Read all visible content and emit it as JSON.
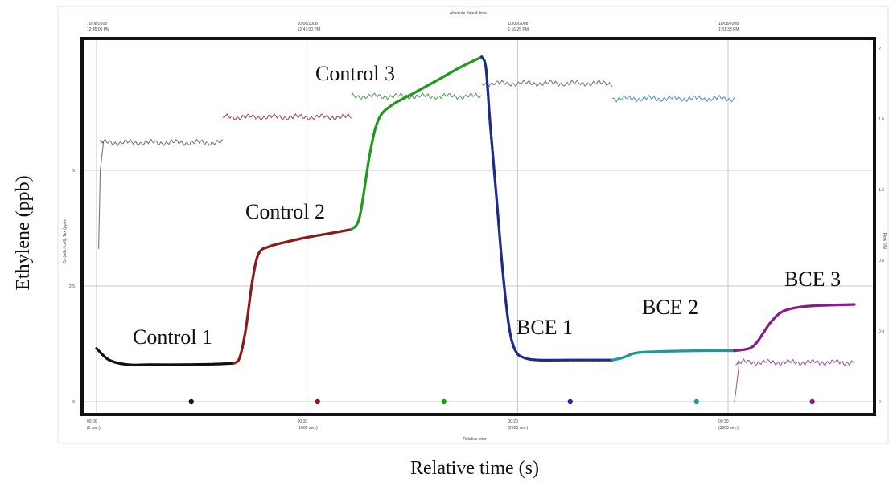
{
  "chart_data": {
    "type": "line",
    "xlabel": "Relative time (s)",
    "ylabel": "Ethylene (ppb)",
    "inner_top_label": "Absolute date & time",
    "inner_bottom_label": "Relative time",
    "inner_left_label": "Ca (ni/h / cell), Tex (ppbv)",
    "inner_right_label": "Flow (l/h)",
    "top_ticks": [
      {
        "line1": "10/08/2008",
        "line2": "12:45:00 PM"
      },
      {
        "line1": "10/08/2008",
        "line2": "12:47:00 PM"
      },
      {
        "line1": "10/08/2008",
        "line2": "1:16:25 PM"
      },
      {
        "line1": "10/08/2008",
        "line2": "1:31:38 PM"
      }
    ],
    "bottom_ticks": [
      {
        "line1": "00:00",
        "line2": "(0 sec.)"
      },
      {
        "line1": "00:10",
        "line2": "(1000 sec.)"
      },
      {
        "line1": "00:20",
        "line2": "(2000 sec.)"
      },
      {
        "line1": "00:30",
        "line2": "(3000 sec.)"
      }
    ],
    "left_ticks": [
      "5",
      "2.5",
      "0"
    ],
    "right_ticks": [
      "2",
      "1.6",
      "1.2",
      "0.8",
      "0.4",
      "0"
    ],
    "xlim": [
      0,
      3600
    ],
    "ylim": [
      0,
      7.5
    ],
    "series": [
      {
        "name": "Control 1",
        "color": "#111111",
        "points": [
          [
            0,
            1.15
          ],
          [
            60,
            0.9
          ],
          [
            150,
            0.8
          ],
          [
            250,
            0.8
          ],
          [
            400,
            0.8
          ],
          [
            550,
            0.81
          ],
          [
            650,
            0.83
          ]
        ],
        "marker": [
          450,
          0
        ]
      },
      {
        "name": "Control 2",
        "color": "#8b1a1a",
        "points": [
          [
            650,
            0.83
          ],
          [
            680,
            0.95
          ],
          [
            710,
            1.6
          ],
          [
            740,
            2.6
          ],
          [
            770,
            3.2
          ],
          [
            820,
            3.35
          ],
          [
            900,
            3.45
          ],
          [
            1000,
            3.55
          ],
          [
            1100,
            3.63
          ],
          [
            1210,
            3.72
          ]
        ],
        "marker": [
          1050,
          0
        ]
      },
      {
        "name": "Control 3",
        "color": "#1f9a1f",
        "points": [
          [
            1210,
            3.72
          ],
          [
            1250,
            4.0
          ],
          [
            1300,
            5.4
          ],
          [
            1340,
            6.1
          ],
          [
            1400,
            6.4
          ],
          [
            1500,
            6.65
          ],
          [
            1620,
            6.95
          ],
          [
            1730,
            7.23
          ],
          [
            1830,
            7.45
          ]
        ],
        "marker": [
          1650,
          0
        ]
      },
      {
        "name": "BCE 1",
        "color": "#1f2a8b",
        "points": [
          [
            1830,
            7.45
          ],
          [
            1850,
            7.2
          ],
          [
            1870,
            6.0
          ],
          [
            1900,
            4.4
          ],
          [
            1930,
            2.8
          ],
          [
            1960,
            1.6
          ],
          [
            1990,
            1.1
          ],
          [
            2030,
            0.95
          ],
          [
            2100,
            0.9
          ],
          [
            2250,
            0.9
          ],
          [
            2450,
            0.9
          ]
        ],
        "marker": [
          2250,
          0
        ]
      },
      {
        "name": "BCE 2",
        "color": "#1a9a9a",
        "points": [
          [
            2450,
            0.9
          ],
          [
            2500,
            0.95
          ],
          [
            2560,
            1.05
          ],
          [
            2650,
            1.08
          ],
          [
            2850,
            1.1
          ],
          [
            3030,
            1.1
          ]
        ],
        "marker": [
          2850,
          0
        ]
      },
      {
        "name": "BCE 3",
        "color": "#8b1a8b",
        "points": [
          [
            3030,
            1.1
          ],
          [
            3100,
            1.15
          ],
          [
            3140,
            1.3
          ],
          [
            3200,
            1.7
          ],
          [
            3260,
            1.95
          ],
          [
            3350,
            2.05
          ],
          [
            3450,
            2.08
          ],
          [
            3600,
            2.1
          ]
        ],
        "marker": [
          3400,
          0
        ]
      }
    ],
    "flow_series": [
      {
        "color": "#777777",
        "x": [
          10,
          600
        ],
        "y": 5.6,
        "rise_from": 3.3
      },
      {
        "color": "#a05050",
        "x": [
          600,
          1210
        ],
        "y": 6.15
      },
      {
        "color": "#5fa05f",
        "x": [
          1210,
          1830
        ],
        "y": 6.6
      },
      {
        "color": "#7a7a9a",
        "x": [
          1830,
          2450
        ],
        "y": 6.88
      },
      {
        "color": "#50a0a0",
        "x": [
          2450,
          3030
        ],
        "y": 6.55
      },
      {
        "color": "#a060a0",
        "x": [
          3030,
          3600
        ],
        "y": 0.85,
        "rise_from": 0
      }
    ],
    "annotations": [
      {
        "text": "Control 1",
        "x": 165,
        "y": 428
      },
      {
        "text": "Control 2",
        "x": 305,
        "y": 272
      },
      {
        "text": "Control 3",
        "x": 392,
        "y": 100
      },
      {
        "text": "BCE 1",
        "x": 642,
        "y": 416
      },
      {
        "text": "BCE 2",
        "x": 798,
        "y": 391
      },
      {
        "text": "BCE 3",
        "x": 975,
        "y": 356
      }
    ]
  }
}
